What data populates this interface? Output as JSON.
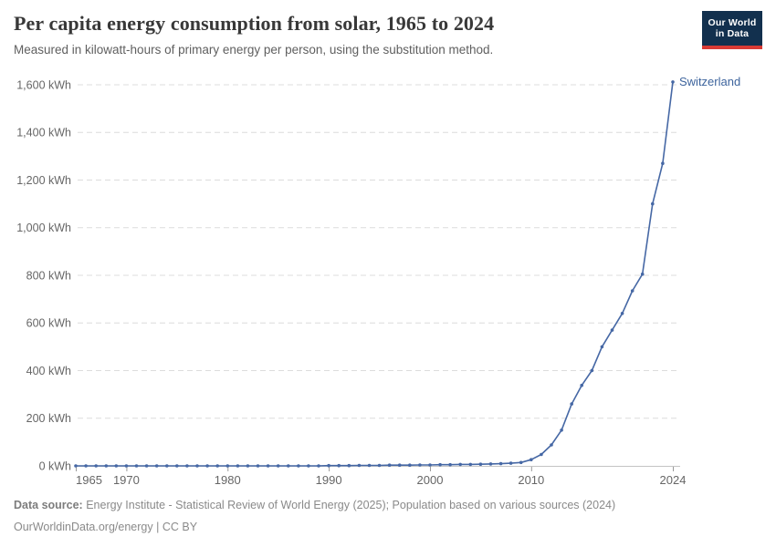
{
  "header": {
    "title": "Per capita energy consumption from solar, 1965 to 2024",
    "subtitle": "Measured in kilowatt-hours of primary energy per person, using the substitution method.",
    "logo": {
      "line1": "Our World",
      "line2": "in Data",
      "bg_color": "#12304e",
      "accent_color": "#d93a34"
    }
  },
  "chart_data": {
    "type": "line",
    "title": "Per capita energy consumption from solar, 1965 to 2024",
    "xlabel": "",
    "ylabel": "",
    "unit": "kWh",
    "xlim": [
      1965,
      2024
    ],
    "ylim": [
      0,
      1600
    ],
    "grid": "horizontal-dashed",
    "legend_position": "end-of-line-label",
    "x_ticks": [
      {
        "value": 1965,
        "label": "1965",
        "anchor": "start"
      },
      {
        "value": 1970,
        "label": "1970",
        "anchor": "middle"
      },
      {
        "value": 1980,
        "label": "1980",
        "anchor": "middle"
      },
      {
        "value": 1990,
        "label": "1990",
        "anchor": "middle"
      },
      {
        "value": 2000,
        "label": "2000",
        "anchor": "middle"
      },
      {
        "value": 2010,
        "label": "2010",
        "anchor": "middle"
      },
      {
        "value": 2024,
        "label": "2024",
        "anchor": "middle"
      }
    ],
    "y_ticks": [
      {
        "value": 0,
        "label": "0 kWh"
      },
      {
        "value": 200,
        "label": "200 kWh"
      },
      {
        "value": 400,
        "label": "400 kWh"
      },
      {
        "value": 600,
        "label": "600 kWh"
      },
      {
        "value": 800,
        "label": "800 kWh"
      },
      {
        "value": 1000,
        "label": "1,000 kWh"
      },
      {
        "value": 1200,
        "label": "1,200 kWh"
      },
      {
        "value": 1400,
        "label": "1,400 kWh"
      },
      {
        "value": 1600,
        "label": "1,600 kWh"
      }
    ],
    "series": [
      {
        "name": "Switzerland",
        "color": "#4668a5",
        "label_color": "#3d649d",
        "x": [
          1965,
          1966,
          1967,
          1968,
          1969,
          1970,
          1971,
          1972,
          1973,
          1974,
          1975,
          1976,
          1977,
          1978,
          1979,
          1980,
          1981,
          1982,
          1983,
          1984,
          1985,
          1986,
          1987,
          1988,
          1989,
          1990,
          1991,
          1992,
          1993,
          1994,
          1995,
          1996,
          1997,
          1998,
          1999,
          2000,
          2001,
          2002,
          2003,
          2004,
          2005,
          2006,
          2007,
          2008,
          2009,
          2010,
          2011,
          2012,
          2013,
          2014,
          2015,
          2016,
          2017,
          2018,
          2019,
          2020,
          2021,
          2022,
          2023,
          2024
        ],
        "values": [
          0,
          0,
          0,
          0,
          0,
          0,
          0,
          0,
          0,
          0,
          0,
          0,
          0,
          0,
          0,
          0,
          0,
          0,
          0,
          0,
          0,
          0,
          0,
          0,
          0,
          1,
          1,
          1,
          2,
          2,
          2,
          3,
          3,
          3,
          4,
          4,
          5,
          5,
          6,
          6,
          7,
          8,
          9,
          11,
          14,
          26,
          48,
          88,
          150,
          260,
          338,
          400,
          500,
          570,
          640,
          735,
          805,
          1100,
          1270,
          1612
        ]
      }
    ],
    "colors": {
      "gridline": "#dcdcdc",
      "axis_line": "#c4c4c4",
      "tick_mark": "#999999",
      "tick_label": "#666666"
    }
  },
  "footer": {
    "source_label": "Data source:",
    "source_text": "Energy Institute - Statistical Review of World Energy (2025); Population based on various sources (2024)",
    "link": "OurWorldinData.org/energy",
    "separator": " | ",
    "license": "CC BY"
  }
}
